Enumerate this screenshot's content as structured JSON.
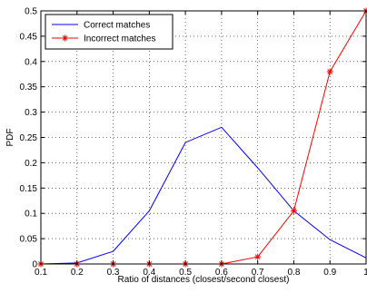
{
  "chart_data": {
    "type": "line",
    "title": "",
    "xlabel": "Ratio of distances (closest/second closest)",
    "ylabel": "PDF",
    "xlim": [
      0.1,
      1
    ],
    "ylim": [
      0,
      0.5
    ],
    "grid": true,
    "grid_style": "dotted",
    "legend_position": "top-left",
    "x_ticks": [
      "0.1",
      "0.2",
      "0.3",
      "0.4",
      "0.5",
      "0.6",
      "0.7",
      "0.8",
      "0.9",
      "1"
    ],
    "y_ticks": [
      "0",
      "0.05",
      "0.1",
      "0.15",
      "0.2",
      "0.25",
      "0.3",
      "0.35",
      "0.4",
      "0.45",
      "0.5"
    ],
    "x": [
      0.1,
      0.2,
      0.3,
      0.4,
      0.5,
      0.6,
      0.7,
      0.8,
      0.9,
      1.0
    ],
    "series": [
      {
        "name": "Correct matches",
        "color": "#0000ff",
        "marker": "none",
        "values": [
          0.0,
          0.002,
          0.025,
          0.105,
          0.24,
          0.27,
          0.19,
          0.105,
          0.048,
          0.012
        ]
      },
      {
        "name": "Incorrect matches",
        "color": "#ff0000",
        "marker": "asterisk",
        "values": [
          0.0,
          0.0,
          0.0,
          0.0,
          0.0,
          0.0,
          0.014,
          0.105,
          0.38,
          0.5
        ]
      }
    ]
  }
}
